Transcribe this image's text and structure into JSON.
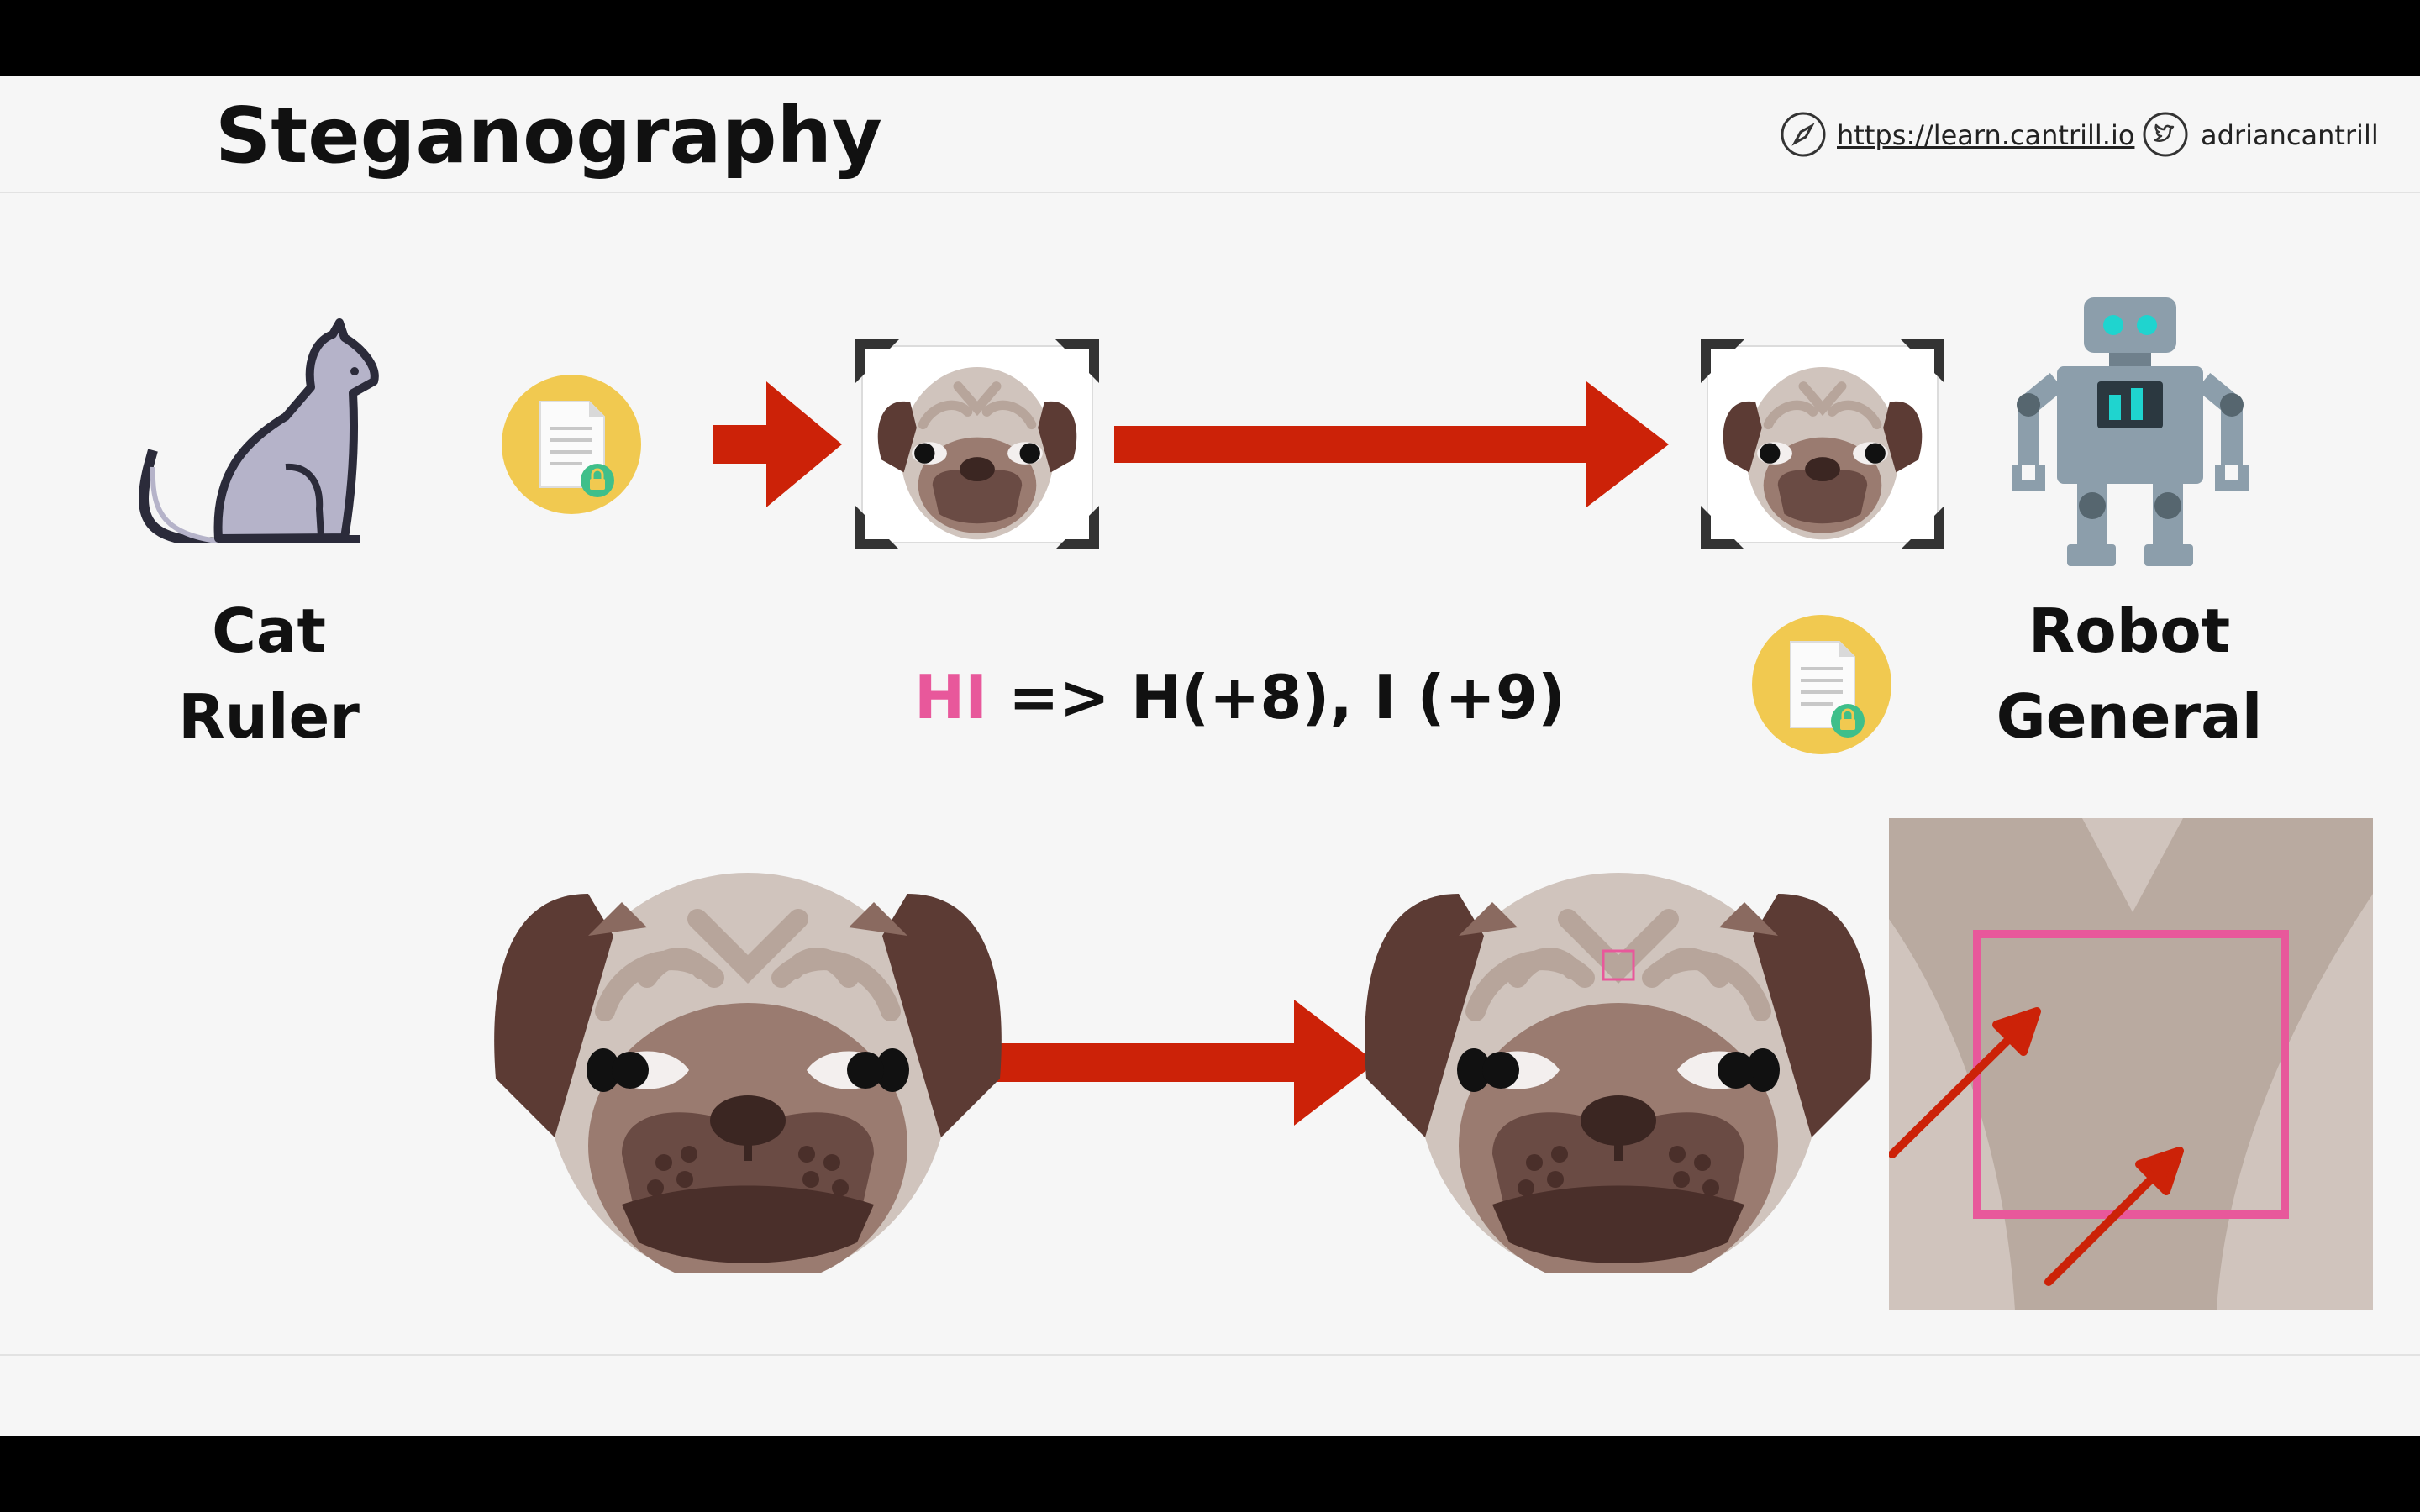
{
  "header": {
    "title": "Steganography",
    "link_text": "https://learn.cantrill.io",
    "twitter_handle": "adriancantrill"
  },
  "labels": {
    "sender_line1": "Cat",
    "sender_line2": "Ruler",
    "receiver_line1": "Robot",
    "receiver_line2": "General"
  },
  "formula": {
    "highlight": "HI",
    "rest": " => H(+8), I (+9)"
  },
  "colors": {
    "arrow": "#cc2208",
    "highlight": "#e8589b",
    "doc_circle": "#f1c950",
    "cat": "#b5b3c9",
    "robot": "#8c9eab"
  },
  "icons": [
    "compass-icon",
    "twitter-icon",
    "cat-icon",
    "secret-document-icon",
    "pug-photo-icon",
    "robot-icon"
  ]
}
